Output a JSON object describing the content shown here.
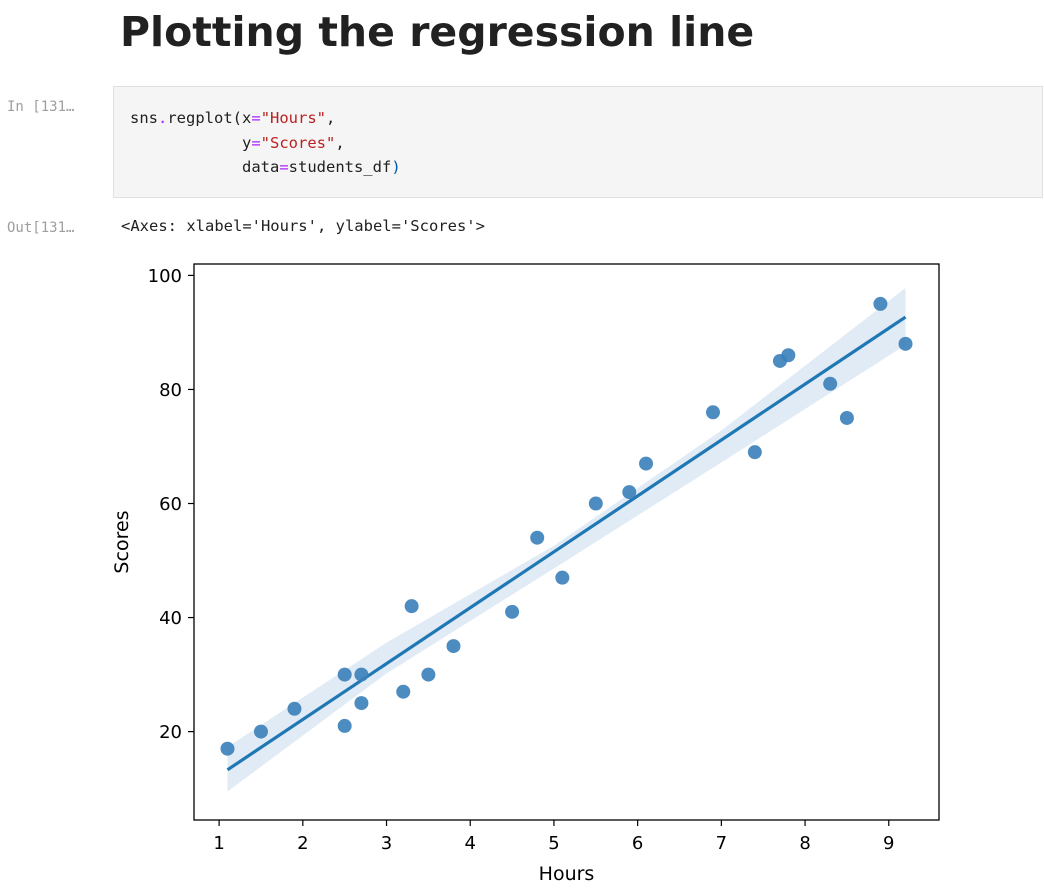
{
  "notebook": {
    "heading": "Plotting the regression line",
    "input_prompt": "In [131…",
    "output_prompt": "Out[131…",
    "code": {
      "line1": {
        "fn": "sns",
        "dot": ".",
        "call": "regplot(",
        "arg1": "x",
        "eq": "=",
        "val1": "\"Hours\"",
        "comma": ","
      },
      "line2": {
        "arg": "y",
        "eq": "=",
        "val": "\"Scores\"",
        "comma": ","
      },
      "line3": {
        "arg": "data",
        "eq": "=",
        "val": "students_df",
        "close": ")"
      }
    },
    "output_text": "<Axes: xlabel='Hours', ylabel='Scores'>"
  },
  "chart_data": {
    "type": "scatter",
    "xlabel": "Hours",
    "ylabel": "Scores",
    "xlim": [
      0.7,
      9.6
    ],
    "ylim": [
      4.5,
      102
    ],
    "xticks": [
      1,
      2,
      3,
      4,
      5,
      6,
      7,
      8,
      9
    ],
    "yticks": [
      20,
      40,
      60,
      80,
      100
    ],
    "grid": false,
    "point_color": "#3a7fb9",
    "line_color": "#1f77b4",
    "band_color": "#c6dbef",
    "points": [
      {
        "x": 1.1,
        "y": 17
      },
      {
        "x": 1.5,
        "y": 20
      },
      {
        "x": 1.9,
        "y": 24
      },
      {
        "x": 2.5,
        "y": 21
      },
      {
        "x": 2.5,
        "y": 30
      },
      {
        "x": 2.7,
        "y": 25
      },
      {
        "x": 2.7,
        "y": 30
      },
      {
        "x": 3.2,
        "y": 27
      },
      {
        "x": 3.3,
        "y": 42
      },
      {
        "x": 3.5,
        "y": 30
      },
      {
        "x": 3.8,
        "y": 35
      },
      {
        "x": 4.5,
        "y": 41
      },
      {
        "x": 4.8,
        "y": 54
      },
      {
        "x": 5.1,
        "y": 47
      },
      {
        "x": 5.5,
        "y": 60
      },
      {
        "x": 5.9,
        "y": 62
      },
      {
        "x": 6.1,
        "y": 67
      },
      {
        "x": 6.9,
        "y": 76
      },
      {
        "x": 7.4,
        "y": 69
      },
      {
        "x": 7.7,
        "y": 85
      },
      {
        "x": 7.8,
        "y": 86
      },
      {
        "x": 8.3,
        "y": 81
      },
      {
        "x": 8.5,
        "y": 75
      },
      {
        "x": 8.9,
        "y": 95
      },
      {
        "x": 9.2,
        "y": 88
      }
    ],
    "regression": {
      "line": [
        {
          "x": 1.1,
          "y": 13.3
        },
        {
          "x": 9.2,
          "y": 92.7
        }
      ],
      "band": [
        {
          "x": 1.1,
          "lo": 9.5,
          "hi": 17.3
        },
        {
          "x": 3.0,
          "lo": 30.2,
          "hi": 35.6
        },
        {
          "x": 5.0,
          "lo": 48.6,
          "hi": 52.6
        },
        {
          "x": 7.0,
          "lo": 67.2,
          "hi": 72.8
        },
        {
          "x": 9.2,
          "lo": 87.8,
          "hi": 97.8
        }
      ]
    }
  }
}
